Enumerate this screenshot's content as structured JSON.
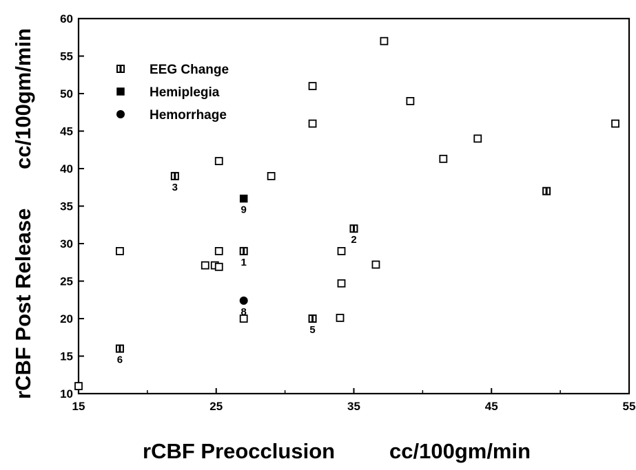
{
  "chart_data": {
    "type": "scatter",
    "title": "",
    "xlabel": "rCBF Preocclusion",
    "xunit": "cc/100gm/min",
    "ylabel": "rCBF Post Release",
    "yunit": "cc/100gm/min",
    "xlim": [
      15,
      55
    ],
    "ylim": [
      10,
      60
    ],
    "xticks": [
      15,
      25,
      35,
      45,
      55
    ],
    "yticks": [
      10,
      15,
      20,
      25,
      30,
      35,
      40,
      45,
      50,
      55,
      60
    ],
    "grid": false,
    "legend_position": "top-left",
    "legend": [
      {
        "label": "EEG Change",
        "marker": "open-square"
      },
      {
        "label": "Hemiplegia",
        "marker": "filled-square"
      },
      {
        "label": "Hemorrhage",
        "marker": "filled-circle"
      }
    ],
    "points": [
      {
        "x": 15,
        "y": 11,
        "marker": "open-square",
        "label": ""
      },
      {
        "x": 18,
        "y": 16,
        "marker": "eeg",
        "label": "6"
      },
      {
        "x": 18,
        "y": 29,
        "marker": "open-square",
        "label": ""
      },
      {
        "x": 22,
        "y": 39,
        "marker": "eeg",
        "label": "3"
      },
      {
        "x": 24.2,
        "y": 27.1,
        "marker": "open-square",
        "label": ""
      },
      {
        "x": 24.9,
        "y": 27.1,
        "marker": "open-square",
        "label": ""
      },
      {
        "x": 25.2,
        "y": 26.9,
        "marker": "open-square",
        "label": ""
      },
      {
        "x": 25.2,
        "y": 29,
        "marker": "open-square",
        "label": ""
      },
      {
        "x": 25.2,
        "y": 41,
        "marker": "open-square",
        "label": ""
      },
      {
        "x": 27,
        "y": 20,
        "marker": "open-square",
        "label": ""
      },
      {
        "x": 27,
        "y": 22.4,
        "marker": "filled-circle",
        "label": "8"
      },
      {
        "x": 27,
        "y": 29,
        "marker": "eeg",
        "label": "1"
      },
      {
        "x": 27,
        "y": 36,
        "marker": "filled-square",
        "label": "9"
      },
      {
        "x": 29,
        "y": 39,
        "marker": "open-square",
        "label": ""
      },
      {
        "x": 32,
        "y": 20,
        "marker": "eeg",
        "label": "5"
      },
      {
        "x": 32,
        "y": 46,
        "marker": "open-square",
        "label": ""
      },
      {
        "x": 32,
        "y": 51,
        "marker": "open-square",
        "label": ""
      },
      {
        "x": 34,
        "y": 20.1,
        "marker": "open-square",
        "label": ""
      },
      {
        "x": 34.1,
        "y": 24.7,
        "marker": "open-square",
        "label": ""
      },
      {
        "x": 34.1,
        "y": 29,
        "marker": "open-square",
        "label": ""
      },
      {
        "x": 35,
        "y": 32,
        "marker": "eeg",
        "label": "2"
      },
      {
        "x": 36.6,
        "y": 27.2,
        "marker": "open-square",
        "label": ""
      },
      {
        "x": 37.2,
        "y": 57,
        "marker": "open-square",
        "label": ""
      },
      {
        "x": 39.1,
        "y": 49,
        "marker": "open-square",
        "label": ""
      },
      {
        "x": 41.5,
        "y": 41.3,
        "marker": "open-square",
        "label": ""
      },
      {
        "x": 44,
        "y": 44,
        "marker": "open-square",
        "label": ""
      },
      {
        "x": 49,
        "y": 37,
        "marker": "eeg",
        "label": ""
      },
      {
        "x": 54,
        "y": 46,
        "marker": "open-square",
        "label": ""
      }
    ]
  }
}
